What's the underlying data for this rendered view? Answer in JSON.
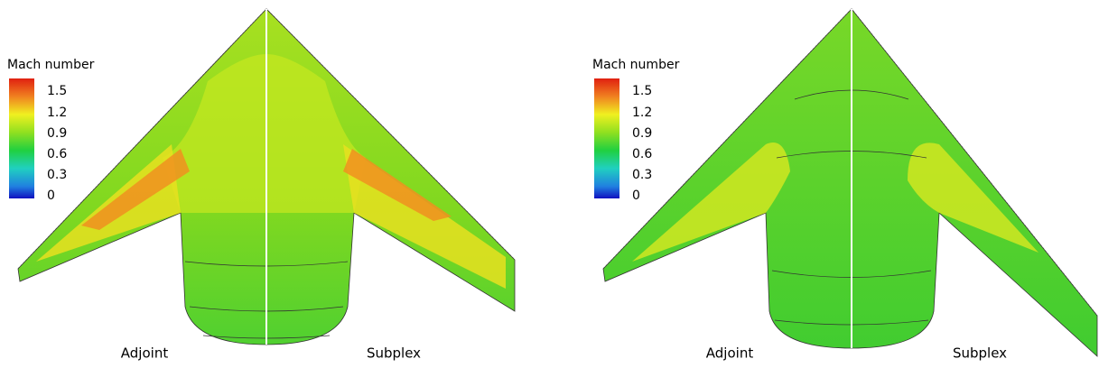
{
  "panels": [
    {
      "colorbar": {
        "title": "Mach number",
        "ticks": [
          1.5,
          1.2,
          0.9,
          0.6,
          0.3,
          0
        ]
      },
      "labels": [
        "Adjoint",
        "Subplex"
      ]
    },
    {
      "colorbar": {
        "title": "Mach number",
        "ticks": [
          1.5,
          1.2,
          0.9,
          0.6,
          0.3,
          0
        ]
      },
      "labels": [
        "Adjoint",
        "Subplex"
      ]
    }
  ]
}
